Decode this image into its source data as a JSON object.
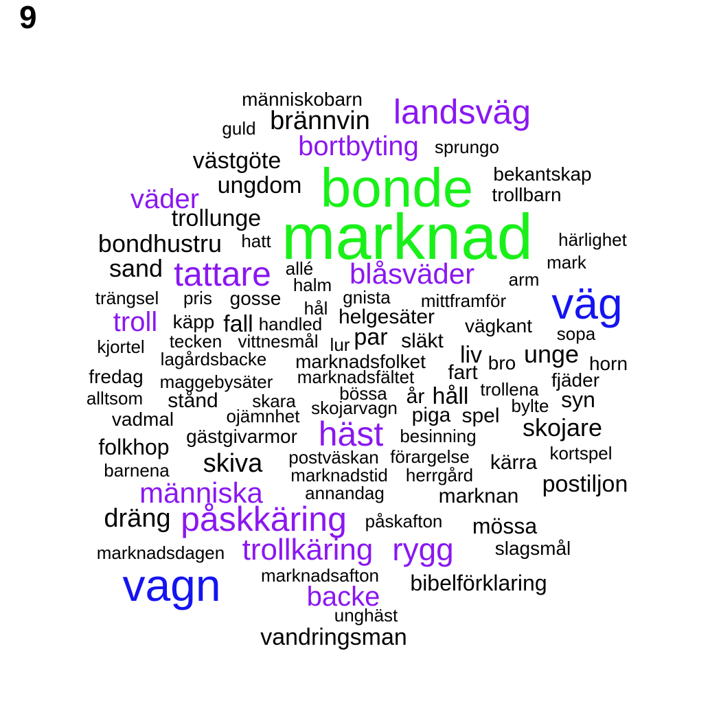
{
  "panel_label": "9",
  "colors": {
    "black": "#000000",
    "purple": "#8a17f0",
    "green": "#19f019",
    "blue": "#1414f0"
  },
  "words": [
    {
      "text": "människobarn",
      "color": "black"
    },
    {
      "text": "landsväg",
      "color": "purple"
    },
    {
      "text": "guld",
      "color": "black"
    },
    {
      "text": "brännvin",
      "color": "black"
    },
    {
      "text": "bortbyting",
      "color": "purple"
    },
    {
      "text": "sprungo",
      "color": "black"
    },
    {
      "text": "västgöte",
      "color": "black"
    },
    {
      "text": "bonde",
      "color": "green"
    },
    {
      "text": "bekantskap",
      "color": "black"
    },
    {
      "text": "ungdom",
      "color": "black"
    },
    {
      "text": "trollbarn",
      "color": "black"
    },
    {
      "text": "väder",
      "color": "purple"
    },
    {
      "text": "trollunge",
      "color": "black"
    },
    {
      "text": "marknad",
      "color": "green"
    },
    {
      "text": "bondhustru",
      "color": "black"
    },
    {
      "text": "hatt",
      "color": "black"
    },
    {
      "text": "härlighet",
      "color": "black"
    },
    {
      "text": "sand",
      "color": "black"
    },
    {
      "text": "tattare",
      "color": "purple"
    },
    {
      "text": "allé",
      "color": "black"
    },
    {
      "text": "blåsväder",
      "color": "purple"
    },
    {
      "text": "mark",
      "color": "black"
    },
    {
      "text": "halm",
      "color": "black"
    },
    {
      "text": "arm",
      "color": "black"
    },
    {
      "text": "trängsel",
      "color": "black"
    },
    {
      "text": "pris",
      "color": "black"
    },
    {
      "text": "gosse",
      "color": "black"
    },
    {
      "text": "gnista",
      "color": "black"
    },
    {
      "text": "mittframför",
      "color": "black"
    },
    {
      "text": "väg",
      "color": "blue"
    },
    {
      "text": "hål",
      "color": "black"
    },
    {
      "text": "troll",
      "color": "purple"
    },
    {
      "text": "käpp",
      "color": "black"
    },
    {
      "text": "fall",
      "color": "black"
    },
    {
      "text": "handled",
      "color": "black"
    },
    {
      "text": "helgesäter",
      "color": "black"
    },
    {
      "text": "vägkant",
      "color": "black"
    },
    {
      "text": "sopa",
      "color": "black"
    },
    {
      "text": "tecken",
      "color": "black"
    },
    {
      "text": "vittnesmål",
      "color": "black"
    },
    {
      "text": "lur",
      "color": "black"
    },
    {
      "text": "par",
      "color": "black"
    },
    {
      "text": "släkt",
      "color": "black"
    },
    {
      "text": "kjortel",
      "color": "black"
    },
    {
      "text": "liv",
      "color": "black"
    },
    {
      "text": "unge",
      "color": "black"
    },
    {
      "text": "lagårdsbacke",
      "color": "black"
    },
    {
      "text": "marknadsfolket",
      "color": "black"
    },
    {
      "text": "bro",
      "color": "black"
    },
    {
      "text": "horn",
      "color": "black"
    },
    {
      "text": "fredag",
      "color": "black"
    },
    {
      "text": "fart",
      "color": "black"
    },
    {
      "text": "fjäder",
      "color": "black"
    },
    {
      "text": "maggebysäter",
      "color": "black"
    },
    {
      "text": "marknadsfältet",
      "color": "black"
    },
    {
      "text": "trollena",
      "color": "black"
    },
    {
      "text": "alltsom",
      "color": "black"
    },
    {
      "text": "bössa",
      "color": "black"
    },
    {
      "text": "år",
      "color": "black"
    },
    {
      "text": "håll",
      "color": "black"
    },
    {
      "text": "syn",
      "color": "black"
    },
    {
      "text": "stånd",
      "color": "black"
    },
    {
      "text": "skara",
      "color": "black"
    },
    {
      "text": "bylte",
      "color": "black"
    },
    {
      "text": "skojarvagn",
      "color": "black"
    },
    {
      "text": "vadmal",
      "color": "black"
    },
    {
      "text": "ojämnhet",
      "color": "black"
    },
    {
      "text": "piga",
      "color": "black"
    },
    {
      "text": "spel",
      "color": "black"
    },
    {
      "text": "skojare",
      "color": "black"
    },
    {
      "text": "häst",
      "color": "purple"
    },
    {
      "text": "folkhop",
      "color": "black"
    },
    {
      "text": "gästgivarmor",
      "color": "black"
    },
    {
      "text": "besinning",
      "color": "black"
    },
    {
      "text": "kortspel",
      "color": "black"
    },
    {
      "text": "skiva",
      "color": "black"
    },
    {
      "text": "postväskan",
      "color": "black"
    },
    {
      "text": "förargelse",
      "color": "black"
    },
    {
      "text": "kärra",
      "color": "black"
    },
    {
      "text": "barnena",
      "color": "black"
    },
    {
      "text": "marknadstid",
      "color": "black"
    },
    {
      "text": "herrgård",
      "color": "black"
    },
    {
      "text": "postiljon",
      "color": "black"
    },
    {
      "text": "människa",
      "color": "purple"
    },
    {
      "text": "annandag",
      "color": "black"
    },
    {
      "text": "marknan",
      "color": "black"
    },
    {
      "text": "dräng",
      "color": "black"
    },
    {
      "text": "påskkäring",
      "color": "purple"
    },
    {
      "text": "påskafton",
      "color": "black"
    },
    {
      "text": "mössa",
      "color": "black"
    },
    {
      "text": "slagsmål",
      "color": "black"
    },
    {
      "text": "trollkäring",
      "color": "purple"
    },
    {
      "text": "rygg",
      "color": "purple"
    },
    {
      "text": "marknadsdagen",
      "color": "black"
    },
    {
      "text": "vagn",
      "color": "blue"
    },
    {
      "text": "marknadsafton",
      "color": "black"
    },
    {
      "text": "bibelförklaring",
      "color": "black"
    },
    {
      "text": "backe",
      "color": "purple"
    },
    {
      "text": "unghäst",
      "color": "black"
    },
    {
      "text": "vandringsman",
      "color": "black"
    }
  ]
}
